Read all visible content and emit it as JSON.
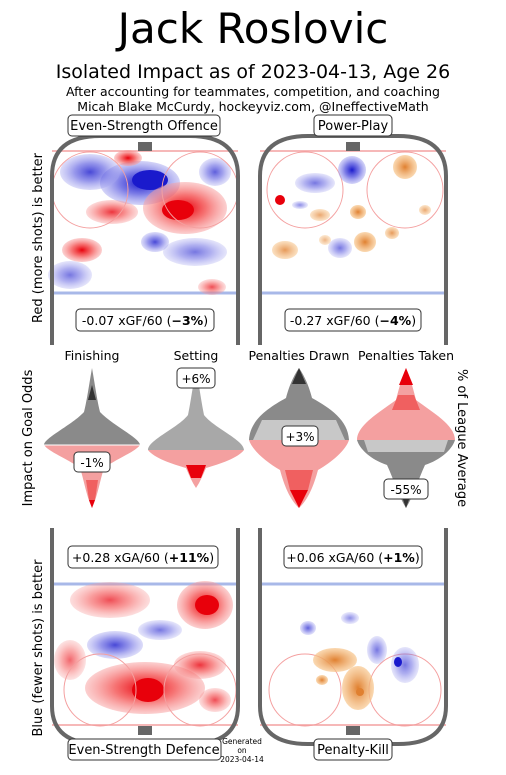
{
  "header": {
    "title": "Jack Roslovic",
    "subtitle": "Isolated Impact as of 2023-04-13, Age 26",
    "note1": "After accounting for teammates, competition, and coaching",
    "note2": "Micah Blake McCurdy, hockeyviz.com, @IneffectiveMath"
  },
  "side_labels": {
    "top": "Red (more shots) is better",
    "middle": "Impact on Goal Odds",
    "middle_right": "% of League Average",
    "bottom": "Blue (fewer shots) is better"
  },
  "footer": {
    "generated_on": "Generated",
    "on": "on",
    "date": "2023-04-14"
  },
  "colors": {
    "red": "#e8000b",
    "blue": "#1a1acc",
    "orange": "#f0a050",
    "rink": "#666666"
  },
  "chart_data": [
    {
      "type": "heatmap",
      "title": "Even-Strength Offence",
      "value_text": "-0.07 xGF/60",
      "pct_text": "−3%",
      "xgf_per60": -0.07,
      "pct": -3
    },
    {
      "type": "heatmap",
      "title": "Power-Play",
      "value_text": "-0.27 xGF/60",
      "pct_text": "−4%",
      "xgf_per60": -0.27,
      "pct": -4
    },
    {
      "type": "violin",
      "categories": [
        "Finishing",
        "Setting",
        "Penalties Drawn",
        "Penalties Taken"
      ],
      "labels": [
        "-1%",
        "+6%",
        "+3%",
        "-55%"
      ],
      "values": [
        -1,
        6,
        3,
        -55
      ]
    },
    {
      "type": "heatmap",
      "title": "Even-Strength Defence",
      "value_text": "+0.28 xGA/60",
      "pct_text": "+11%",
      "xga_per60": 0.28,
      "pct": 11
    },
    {
      "type": "heatmap",
      "title": "Penalty-Kill",
      "value_text": "+0.06 xGA/60",
      "pct_text": "+1%",
      "xga_per60": 0.06,
      "pct": 1
    }
  ]
}
